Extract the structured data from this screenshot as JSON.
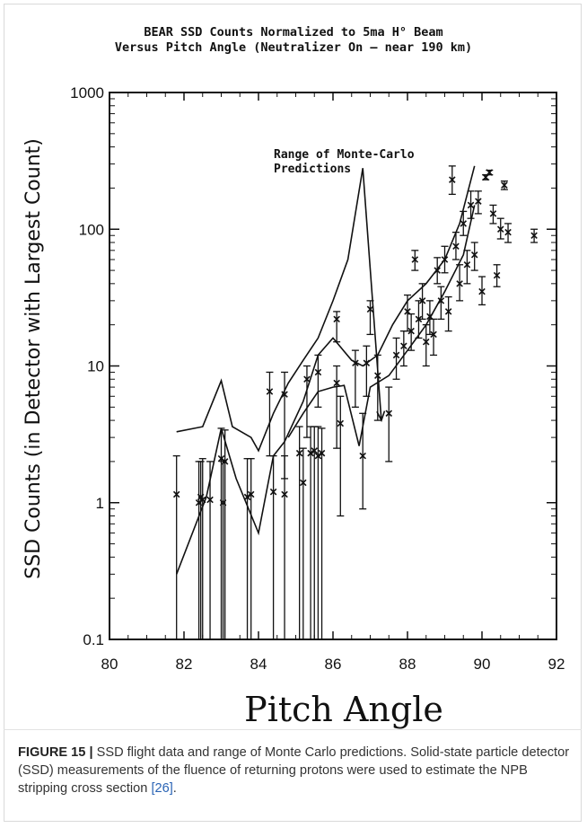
{
  "figure": {
    "title_line1": "BEAR SSD Counts Normalized to 5ma H° Beam",
    "title_line2": "Versus Pitch Angle (Neutralizer On – near 190 km)",
    "annotation": {
      "line1": "Range of Monte-Carlo",
      "line2": "Predictions"
    },
    "caption": {
      "label": "FIGURE 15 |",
      "text": " SSD flight data and range of Monte Carlo predictions. Solid-state particle detector (SSD) measurements of the fluence of returning protons were used to estimate the NPB stripping cross section ",
      "ref": "[26]",
      "end": "."
    }
  },
  "chart_data": {
    "type": "scatter",
    "title": "BEAR SSD Counts Normalized to 5ma H° Beam Versus Pitch Angle (Neutralizer On – near 190 km)",
    "xlabel": "Pitch Angle",
    "ylabel": "SSD Counts (in Detector with Largest Count)",
    "xlim": [
      80,
      92
    ],
    "ylim": [
      0.1,
      1000
    ],
    "yscale": "log",
    "x_ticks": [
      "80",
      "82",
      "84",
      "86",
      "88",
      "90",
      "92"
    ],
    "y_ticks": [
      "0.1",
      "1",
      "10",
      "100",
      "1000"
    ],
    "grid": false,
    "line_color": "#111111",
    "points": [
      {
        "x": 81.8,
        "y": 1.15,
        "lo": 0.1,
        "hi": 2.2
      },
      {
        "x": 82.4,
        "y": 1.0,
        "lo": 0.1,
        "hi": 2.0
      },
      {
        "x": 82.45,
        "y": 1.1,
        "lo": 0.1,
        "hi": 2.0
      },
      {
        "x": 82.5,
        "y": 1.05,
        "lo": 0.1,
        "hi": 2.1
      },
      {
        "x": 82.7,
        "y": 1.05,
        "lo": 0.1,
        "hi": 2.0
      },
      {
        "x": 83.0,
        "y": 2.1,
        "lo": 0.1,
        "hi": 3.5
      },
      {
        "x": 83.05,
        "y": 1.0,
        "lo": 0.1,
        "hi": 2.0
      },
      {
        "x": 83.1,
        "y": 2.0,
        "lo": 0.1,
        "hi": 3.4
      },
      {
        "x": 83.7,
        "y": 1.1,
        "lo": 0.1,
        "hi": 2.1
      },
      {
        "x": 83.8,
        "y": 1.15,
        "lo": 0.1,
        "hi": 2.1
      },
      {
        "x": 84.3,
        "y": 6.5,
        "lo": 2.2,
        "hi": 9.0
      },
      {
        "x": 84.4,
        "y": 1.2,
        "lo": 0.1,
        "hi": 2.2
      },
      {
        "x": 84.7,
        "y": 6.2,
        "lo": 1.5,
        "hi": 9.0
      },
      {
        "x": 84.7,
        "y": 1.15,
        "lo": 0.1,
        "hi": 2.2
      },
      {
        "x": 85.1,
        "y": 2.3,
        "lo": 0.1,
        "hi": 3.6
      },
      {
        "x": 85.2,
        "y": 1.4,
        "lo": 0.1,
        "hi": 2.5
      },
      {
        "x": 85.3,
        "y": 8.0,
        "lo": 3.0,
        "hi": 10.0
      },
      {
        "x": 85.4,
        "y": 2.3,
        "lo": 0.1,
        "hi": 3.6
      },
      {
        "x": 85.5,
        "y": 2.4,
        "lo": 0.1,
        "hi": 3.6
      },
      {
        "x": 85.6,
        "y": 2.2,
        "lo": 0.1,
        "hi": 3.6
      },
      {
        "x": 85.7,
        "y": 2.3,
        "lo": 0.1,
        "hi": 3.5
      },
      {
        "x": 85.6,
        "y": 9.0,
        "lo": 5.0,
        "hi": 12.0
      },
      {
        "x": 86.1,
        "y": 22.0,
        "lo": 15.0,
        "hi": 25.0
      },
      {
        "x": 86.1,
        "y": 7.5,
        "lo": 2.5,
        "hi": 10.0
      },
      {
        "x": 86.2,
        "y": 3.8,
        "lo": 0.8,
        "hi": 6.0
      },
      {
        "x": 86.6,
        "y": 10.5,
        "lo": 5.0,
        "hi": 13.0
      },
      {
        "x": 86.8,
        "y": 2.2,
        "lo": 0.9,
        "hi": 4.5
      },
      {
        "x": 86.9,
        "y": 10.5,
        "lo": 6.0,
        "hi": 14.0
      },
      {
        "x": 87.0,
        "y": 26.0,
        "lo": 17.0,
        "hi": 30.0
      },
      {
        "x": 87.2,
        "y": 8.5,
        "lo": 4.0,
        "hi": 12.0
      },
      {
        "x": 87.5,
        "y": 4.5,
        "lo": 2.0,
        "hi": 7.0
      },
      {
        "x": 87.7,
        "y": 12.0,
        "lo": 8.0,
        "hi": 16.0
      },
      {
        "x": 87.9,
        "y": 14.0,
        "lo": 10.0,
        "hi": 18.0
      },
      {
        "x": 88.0,
        "y": 25.0,
        "lo": 18.0,
        "hi": 33.0
      },
      {
        "x": 88.1,
        "y": 18.0,
        "lo": 13.0,
        "hi": 24.0
      },
      {
        "x": 88.2,
        "y": 60.0,
        "lo": 50.0,
        "hi": 70.0
      },
      {
        "x": 88.3,
        "y": 22.0,
        "lo": 16.0,
        "hi": 30.0
      },
      {
        "x": 88.4,
        "y": 30.0,
        "lo": 22.0,
        "hi": 40.0
      },
      {
        "x": 88.5,
        "y": 15.0,
        "lo": 10.0,
        "hi": 20.0
      },
      {
        "x": 88.6,
        "y": 23.0,
        "lo": 17.0,
        "hi": 30.0
      },
      {
        "x": 88.7,
        "y": 17.0,
        "lo": 12.0,
        "hi": 22.0
      },
      {
        "x": 88.8,
        "y": 50.0,
        "lo": 40.0,
        "hi": 62.0
      },
      {
        "x": 88.9,
        "y": 30.0,
        "lo": 22.0,
        "hi": 38.0
      },
      {
        "x": 89.0,
        "y": 60.0,
        "lo": 48.0,
        "hi": 75.0
      },
      {
        "x": 89.1,
        "y": 25.0,
        "lo": 18.0,
        "hi": 32.0
      },
      {
        "x": 89.2,
        "y": 230.0,
        "lo": 180.0,
        "hi": 290.0
      },
      {
        "x": 89.3,
        "y": 75.0,
        "lo": 60.0,
        "hi": 95.0
      },
      {
        "x": 89.4,
        "y": 40.0,
        "lo": 30.0,
        "hi": 55.0
      },
      {
        "x": 89.5,
        "y": 110.0,
        "lo": 90.0,
        "hi": 135.0
      },
      {
        "x": 89.6,
        "y": 55.0,
        "lo": 40.0,
        "hi": 70.0
      },
      {
        "x": 89.7,
        "y": 150.0,
        "lo": 120.0,
        "hi": 190.0
      },
      {
        "x": 89.8,
        "y": 65.0,
        "lo": 50.0,
        "hi": 80.0
      },
      {
        "x": 89.9,
        "y": 160.0,
        "lo": 130.0,
        "hi": 190.0
      },
      {
        "x": 90.0,
        "y": 35.0,
        "lo": 28.0,
        "hi": 45.0
      },
      {
        "x": 90.1,
        "y": 240.0,
        "lo": 230.0,
        "hi": 250.0
      },
      {
        "x": 90.2,
        "y": 260.0,
        "lo": 250.0,
        "hi": 270.0
      },
      {
        "x": 90.3,
        "y": 130.0,
        "lo": 110.0,
        "hi": 150.0
      },
      {
        "x": 90.4,
        "y": 46.0,
        "lo": 38.0,
        "hi": 55.0
      },
      {
        "x": 90.5,
        "y": 100.0,
        "lo": 85.0,
        "hi": 120.0
      },
      {
        "x": 90.6,
        "y": 210.0,
        "lo": 195.0,
        "hi": 225.0
      },
      {
        "x": 90.7,
        "y": 95.0,
        "lo": 80.0,
        "hi": 110.0
      },
      {
        "x": 91.4,
        "y": 90.0,
        "lo": 80.0,
        "hi": 100.0
      }
    ],
    "prediction_lines": [
      {
        "points": [
          [
            81.8,
            3.3
          ],
          [
            82.5,
            3.6
          ],
          [
            83.0,
            7.8
          ],
          [
            83.3,
            3.6
          ],
          [
            83.8,
            3.0
          ],
          [
            84.0,
            2.4
          ],
          [
            84.4,
            4.5
          ],
          [
            84.8,
            7.5
          ],
          [
            85.2,
            11.0
          ],
          [
            85.6,
            16.0
          ],
          [
            86.0,
            30.0
          ],
          [
            86.4,
            60.0
          ],
          [
            86.8,
            280.0
          ],
          [
            87.3,
            4.0
          ]
        ]
      },
      {
        "points": [
          [
            81.8,
            0.3
          ],
          [
            82.6,
            1.1
          ],
          [
            83.0,
            3.5
          ],
          [
            83.4,
            1.5
          ],
          [
            84.0,
            0.6
          ],
          [
            84.4,
            2.2
          ],
          [
            84.7,
            2.8
          ],
          [
            85.2,
            5.5
          ],
          [
            85.6,
            12.0
          ],
          [
            86.0,
            16.0
          ],
          [
            86.5,
            11.0
          ],
          [
            86.8,
            10.0
          ],
          [
            87.2,
            12.0
          ],
          [
            87.6,
            20.0
          ],
          [
            88.0,
            30.0
          ],
          [
            88.5,
            40.0
          ],
          [
            89.0,
            60.0
          ],
          [
            89.4,
            110.0
          ],
          [
            89.8,
            290.0
          ]
        ]
      },
      {
        "points": [
          [
            84.8,
            3.0
          ],
          [
            85.2,
            4.5
          ],
          [
            85.6,
            6.5
          ],
          [
            86.0,
            7.0
          ],
          [
            86.3,
            7.2
          ],
          [
            86.7,
            2.6
          ],
          [
            87.0,
            7.0
          ],
          [
            87.5,
            8.5
          ],
          [
            88.0,
            13.0
          ],
          [
            88.5,
            20.0
          ],
          [
            89.0,
            35.0
          ],
          [
            89.5,
            65.0
          ],
          [
            89.8,
            150.0
          ]
        ]
      }
    ],
    "annotation_arrow": {
      "from": [
        86.8,
        280.0
      ],
      "to": [
        87.3,
        4.0
      ]
    }
  }
}
